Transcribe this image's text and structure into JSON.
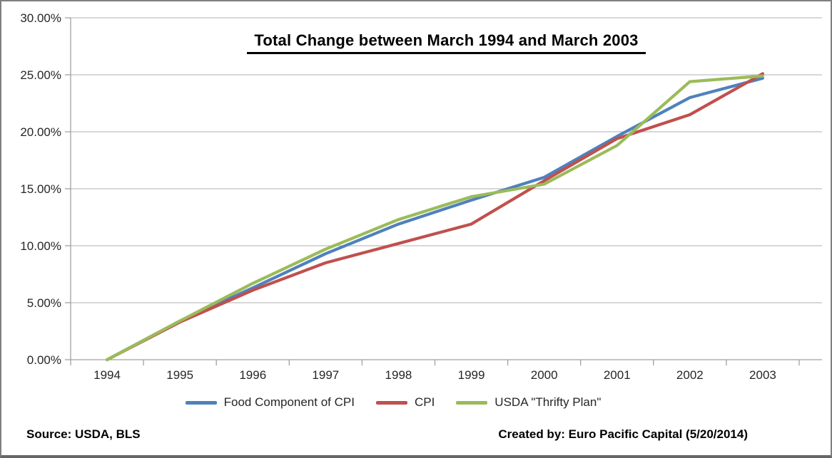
{
  "chart_data": {
    "type": "line",
    "title": "Total Change between March 1994 and March 2003",
    "categories": [
      "1994",
      "1995",
      "1996",
      "1997",
      "1998",
      "1999",
      "2000",
      "2001",
      "2002",
      "2003"
    ],
    "series": [
      {
        "name": "Food Component of CPI",
        "color": "#4F81BD",
        "values": [
          0.0,
          3.4,
          6.3,
          9.3,
          11.9,
          14.0,
          16.0,
          19.6,
          23.0,
          24.7
        ]
      },
      {
        "name": "CPI",
        "color": "#C0504D",
        "values": [
          0.0,
          3.3,
          6.1,
          8.5,
          10.2,
          11.9,
          15.7,
          19.4,
          21.5,
          25.1
        ]
      },
      {
        "name": "USDA \"Thrifty Plan\"",
        "color": "#9BBB59",
        "values": [
          0.0,
          3.4,
          6.7,
          9.7,
          12.3,
          14.3,
          15.4,
          18.8,
          24.4,
          24.9
        ]
      }
    ],
    "xlabel": "",
    "ylabel": "",
    "ylim": [
      0,
      30
    ],
    "y_tick_step": 5,
    "y_tick_labels": [
      "0.00%",
      "5.00%",
      "10.00%",
      "15.00%",
      "20.00%",
      "25.00%",
      "30.00%"
    ],
    "grid": "horizontal",
    "legend_position": "bottom"
  },
  "footer": {
    "source": "Source: USDA, BLS",
    "created_by": "Created by: Euro Pacific Capital (5/20/2014)"
  },
  "colors": {
    "gridline": "#BFBFBF",
    "axis": "#A0A0A0",
    "tick_text": "#262626",
    "series_blue": "#4F81BD",
    "series_red": "#C0504D",
    "series_green": "#9BBB59"
  }
}
